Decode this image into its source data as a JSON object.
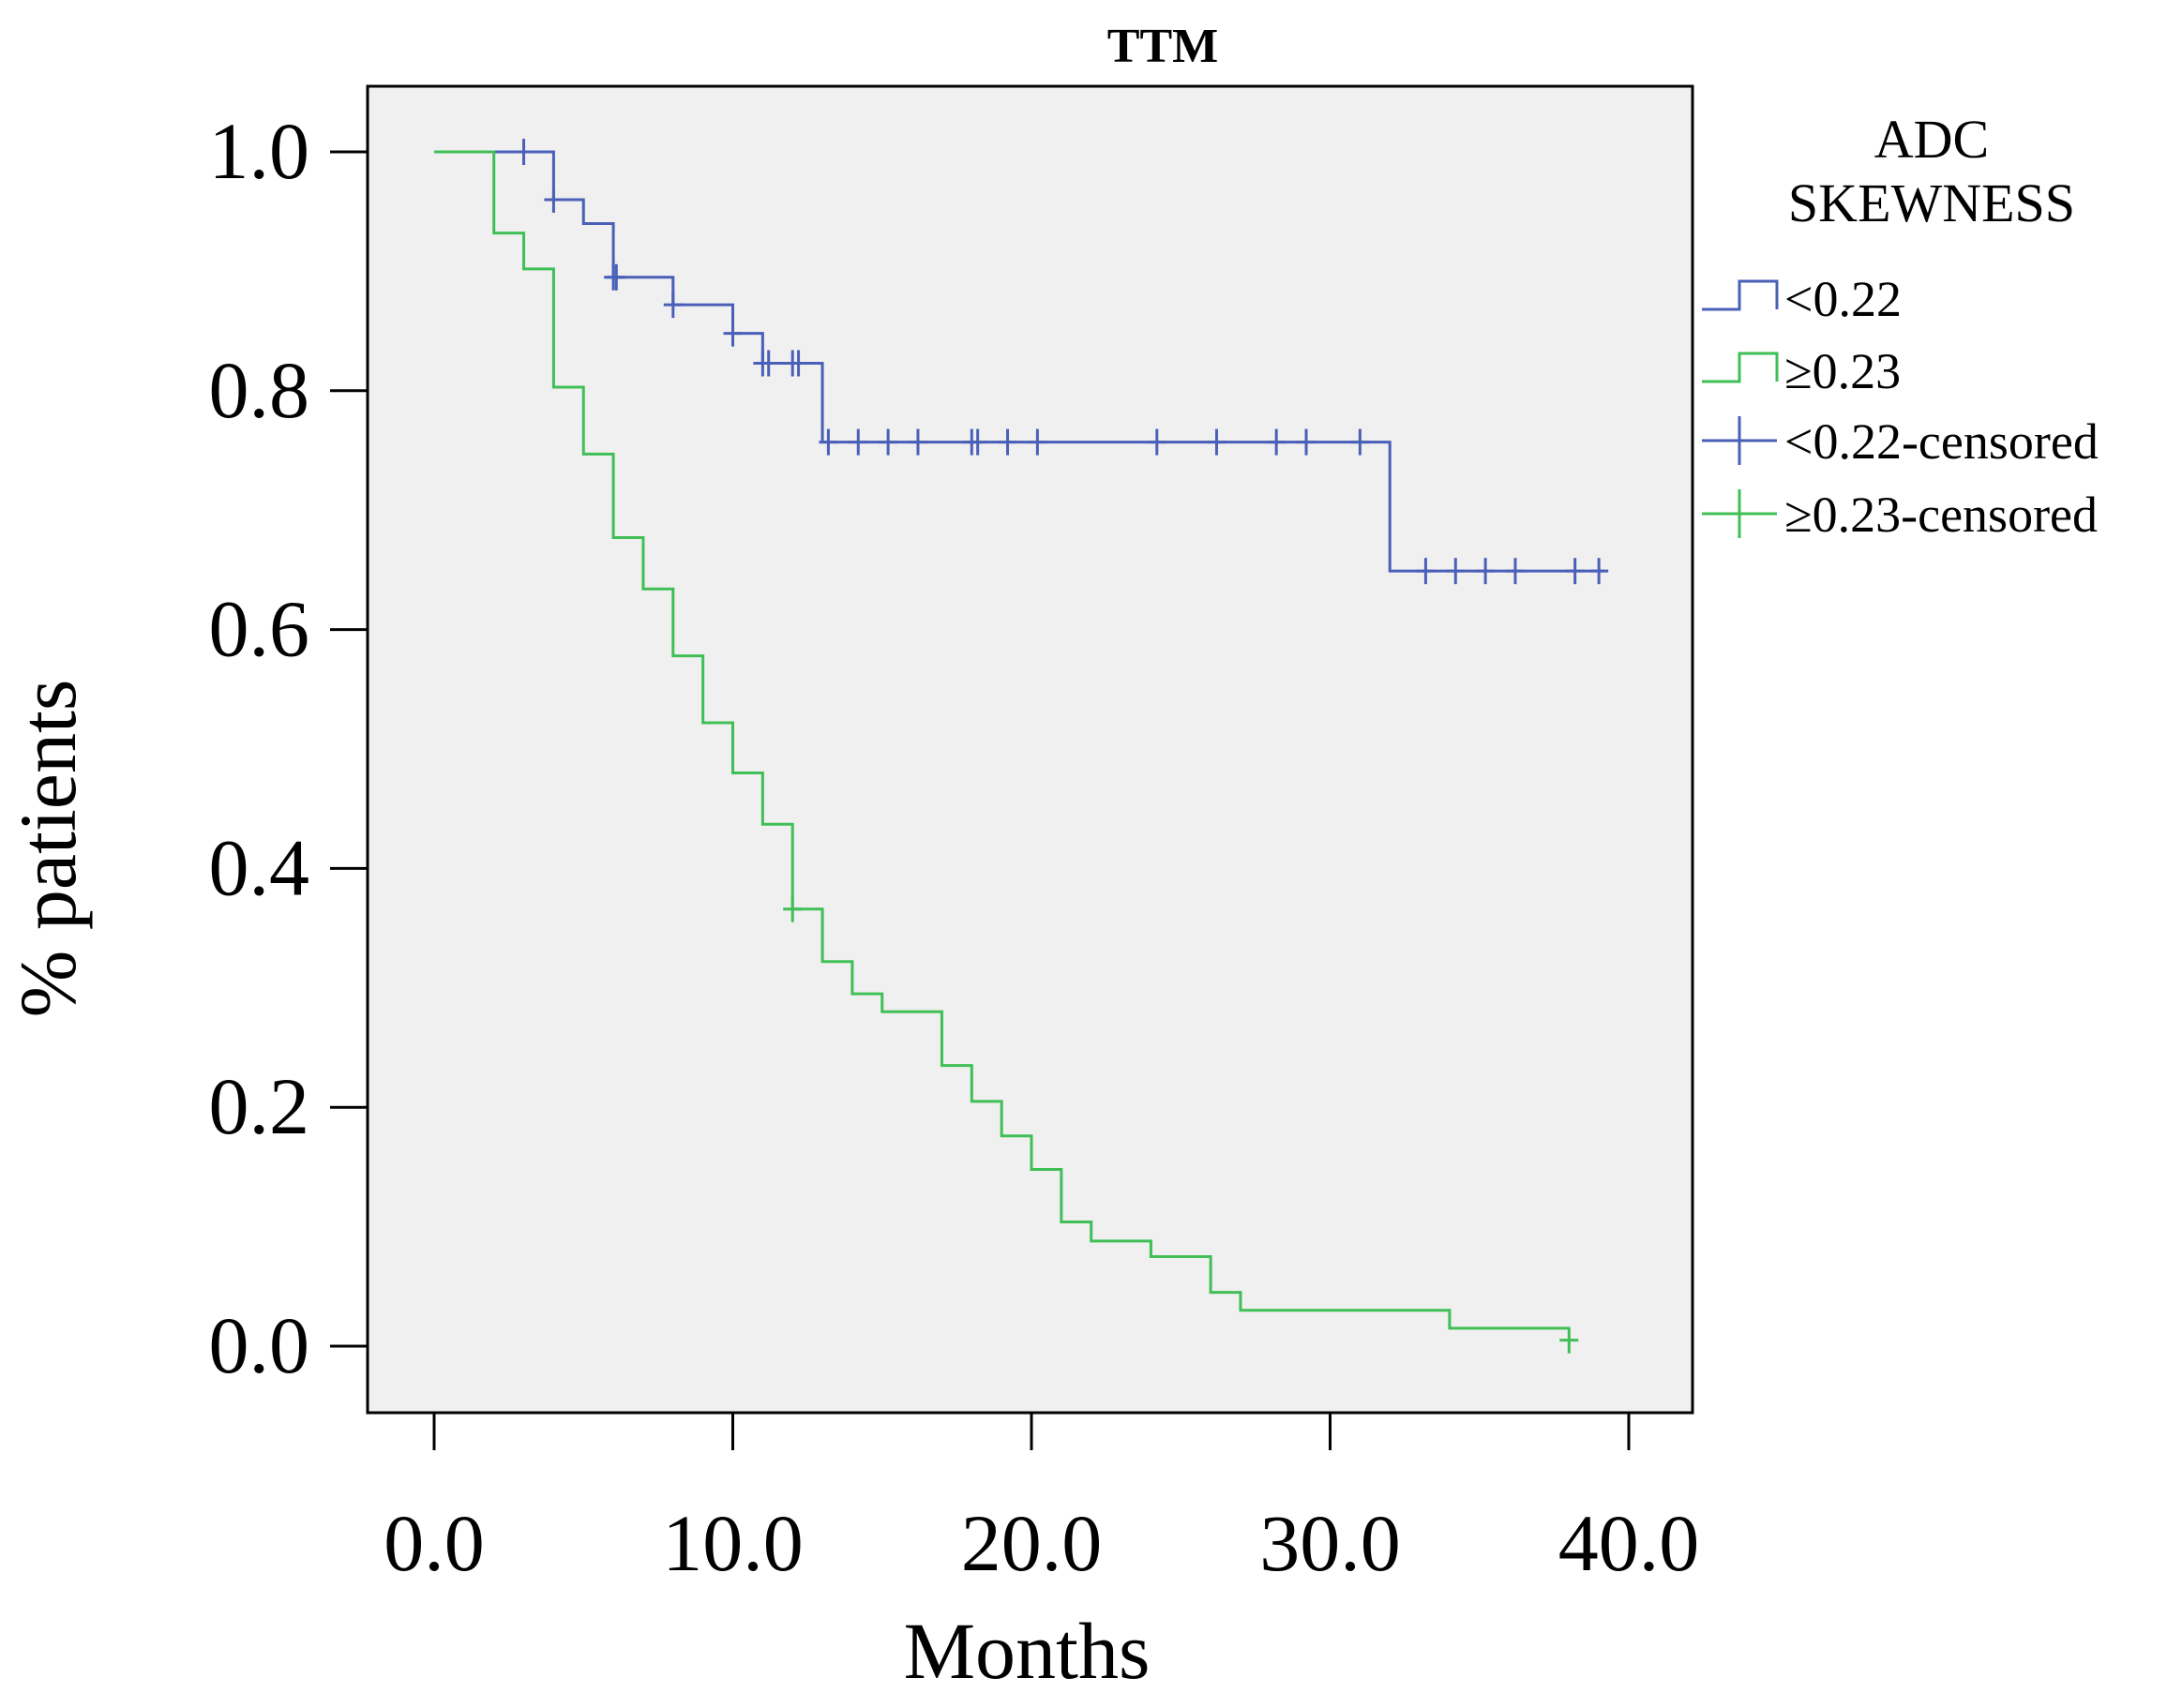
{
  "chart_data": {
    "type": "line",
    "subtype": "kaplan-meier",
    "title": "TTM",
    "xlabel": "Months",
    "ylabel": "% patients",
    "xlim": [
      0,
      40
    ],
    "ylim": [
      0,
      1
    ],
    "xticks": [
      0,
      10,
      20,
      30,
      40
    ],
    "xtick_labels": [
      "0.0",
      "10.0",
      "20.0",
      "30.0",
      "40.0"
    ],
    "yticks": [
      0,
      0.2,
      0.4,
      0.6,
      0.8,
      1.0
    ],
    "ytick_labels": [
      "0.0",
      "0.2",
      "0.4",
      "0.6",
      "0.8",
      "1.0"
    ],
    "grid": false,
    "legend": {
      "title_lines": [
        "ADC",
        "SKEWNESS"
      ],
      "position": "right",
      "entries": [
        "<0.22",
        "≥0.23",
        "<0.22-censored",
        "≥0.23-censored"
      ]
    },
    "series": [
      {
        "name": "<0.22",
        "color": "#4a5fb8",
        "steps": [
          [
            0,
            1.0
          ],
          [
            4,
            0.96
          ],
          [
            5,
            0.94
          ],
          [
            6,
            0.895
          ],
          [
            8,
            0.872
          ],
          [
            10,
            0.848
          ],
          [
            11,
            0.823
          ],
          [
            13,
            0.757
          ],
          [
            32,
            0.649
          ],
          [
            39.2,
            0.649
          ]
        ],
        "censored": [
          [
            3,
            1.0
          ],
          [
            4,
            0.96
          ],
          [
            6,
            0.895
          ],
          [
            6.1,
            0.895
          ],
          [
            8,
            0.872
          ],
          [
            10,
            0.848
          ],
          [
            11,
            0.823
          ],
          [
            11.2,
            0.823
          ],
          [
            12,
            0.823
          ],
          [
            12.2,
            0.823
          ],
          [
            13.2,
            0.757
          ],
          [
            14.2,
            0.757
          ],
          [
            15.2,
            0.757
          ],
          [
            16.2,
            0.757
          ],
          [
            18,
            0.757
          ],
          [
            18.2,
            0.757
          ],
          [
            19.2,
            0.757
          ],
          [
            20.2,
            0.757
          ],
          [
            24.2,
            0.757
          ],
          [
            26.2,
            0.757
          ],
          [
            28.2,
            0.757
          ],
          [
            29.2,
            0.757
          ],
          [
            31,
            0.757
          ],
          [
            33.2,
            0.649
          ],
          [
            34.2,
            0.649
          ],
          [
            35.2,
            0.649
          ],
          [
            36.2,
            0.649
          ],
          [
            38.2,
            0.649
          ],
          [
            39,
            0.649
          ]
        ]
      },
      {
        "name": "≥0.23",
        "color": "#3fbf55",
        "steps": [
          [
            0,
            1.0
          ],
          [
            2,
            0.932
          ],
          [
            3,
            0.902
          ],
          [
            4,
            0.803
          ],
          [
            5,
            0.747
          ],
          [
            6,
            0.677
          ],
          [
            7,
            0.634
          ],
          [
            8,
            0.578
          ],
          [
            9,
            0.522
          ],
          [
            10,
            0.48
          ],
          [
            11,
            0.437
          ],
          [
            12,
            0.366
          ],
          [
            13,
            0.322
          ],
          [
            14,
            0.295
          ],
          [
            15,
            0.28
          ],
          [
            17,
            0.235
          ],
          [
            18,
            0.205
          ],
          [
            19,
            0.176
          ],
          [
            20,
            0.148
          ],
          [
            21,
            0.104
          ],
          [
            22,
            0.088
          ],
          [
            24,
            0.075
          ],
          [
            26,
            0.045
          ],
          [
            27,
            0.03
          ],
          [
            34,
            0.015
          ],
          [
            38,
            0.015
          ]
        ],
        "censored": [
          [
            12,
            0.366
          ],
          [
            38,
            0.005
          ]
        ]
      }
    ]
  }
}
